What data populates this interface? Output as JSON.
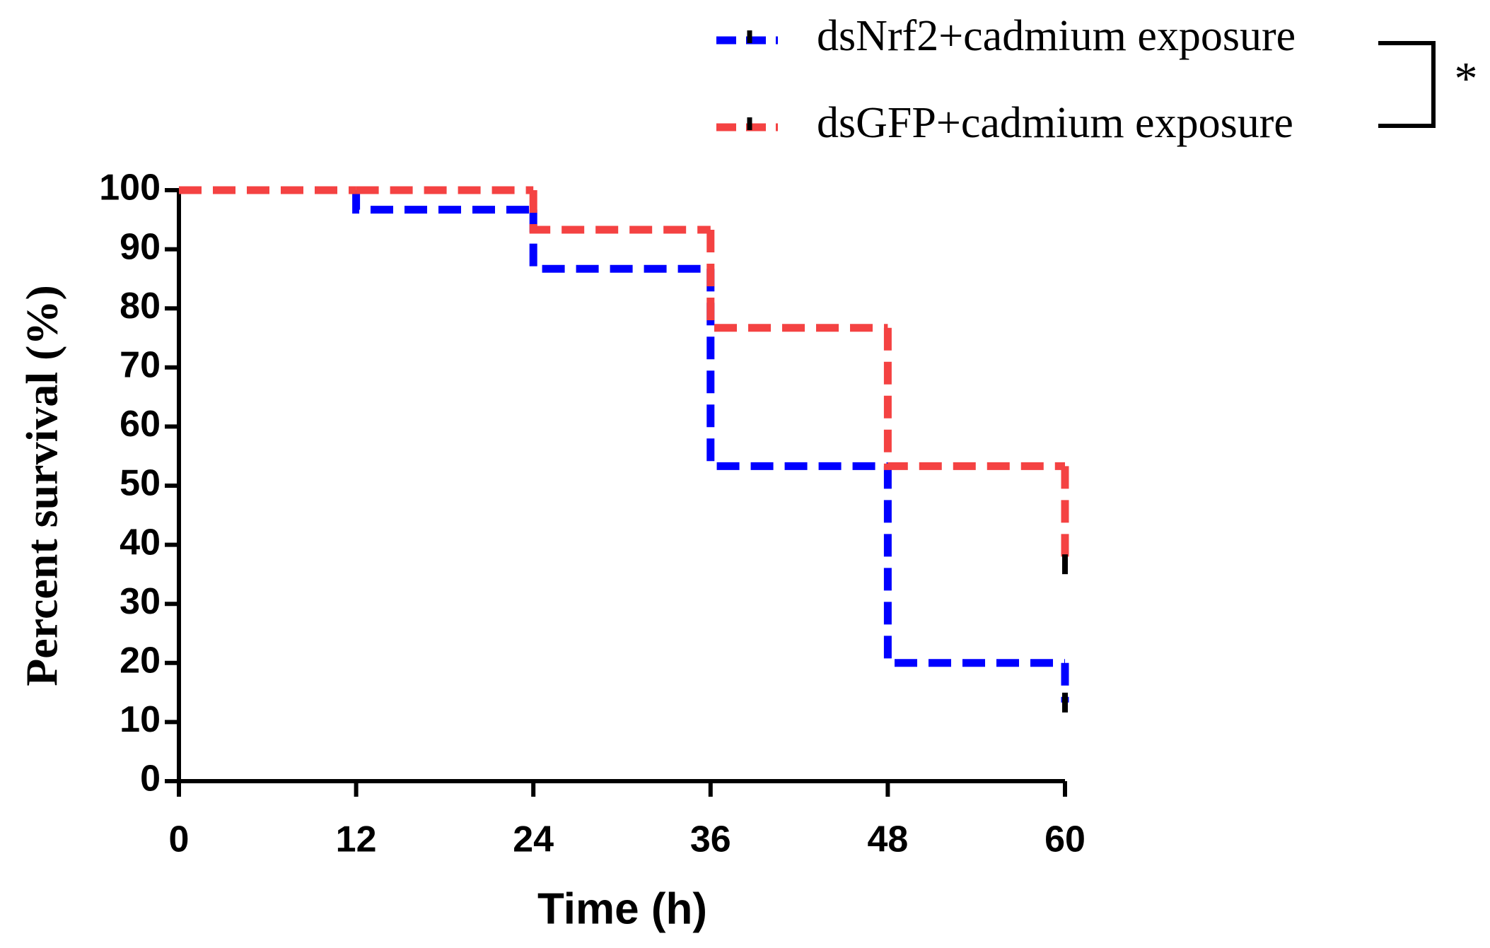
{
  "chart_data": {
    "type": "step",
    "xlabel": "Time (h)",
    "ylabel": "Percent survival (%)",
    "x": [
      0,
      12,
      24,
      36,
      48,
      60
    ],
    "series": [
      {
        "name": "dsNrf2+cadmium exposure",
        "color": "#0000ff",
        "values": [
          100,
          96.7,
          86.7,
          53.3,
          20,
          13.3
        ]
      },
      {
        "name": "dsGFP+cadmium exposure",
        "color": "#f44242",
        "values": [
          100,
          100,
          93.3,
          76.7,
          53.3,
          36.7
        ]
      }
    ],
    "xlim": [
      0,
      60
    ],
    "xticks": [
      0,
      12,
      24,
      36,
      48,
      60
    ],
    "ylim": [
      0,
      100
    ],
    "yticks": [
      0,
      10,
      20,
      30,
      40,
      50,
      60,
      70,
      80,
      90,
      100
    ],
    "annotation": "*"
  }
}
